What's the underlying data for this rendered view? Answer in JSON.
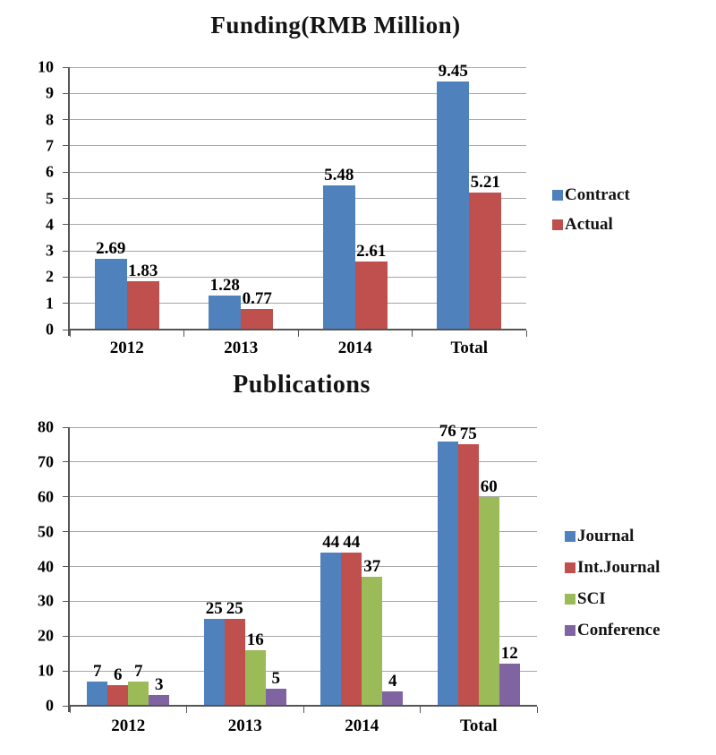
{
  "page": {
    "background": "#ffffff"
  },
  "chart_data": [
    {
      "type": "bar",
      "title": "Funding(RMB Million)",
      "categories": [
        "2012",
        "2013",
        "2014",
        "Total"
      ],
      "series": [
        {
          "name": "Contract",
          "color": "#4F81BD",
          "values": [
            2.69,
            1.28,
            5.48,
            9.45
          ],
          "labels": [
            "2.69",
            "1.28",
            "5.48",
            "9.45"
          ]
        },
        {
          "name": "Actual",
          "color": "#C0504D",
          "values": [
            1.83,
            0.77,
            2.61,
            5.21
          ],
          "labels": [
            "1.83",
            "0.77",
            "2.61",
            "5.21"
          ]
        }
      ],
      "ylim": [
        0,
        10
      ],
      "yticks": [
        0,
        1,
        2,
        3,
        4,
        5,
        6,
        7,
        8,
        9,
        10
      ],
      "xlabel": "",
      "ylabel": "",
      "grid": true,
      "legend_position": "right"
    },
    {
      "type": "bar",
      "title": "Publications",
      "categories": [
        "2012",
        "2013",
        "2014",
        "Total"
      ],
      "series": [
        {
          "name": "Journal",
          "color": "#4F81BD",
          "values": [
            7,
            25,
            44,
            76
          ],
          "labels": [
            "7",
            "25",
            "44",
            "76"
          ]
        },
        {
          "name": "Int.Journal",
          "color": "#C0504D",
          "values": [
            6,
            25,
            44,
            75
          ],
          "labels": [
            "6",
            "25",
            "44",
            "75"
          ]
        },
        {
          "name": "SCI",
          "color": "#9BBB59",
          "values": [
            7,
            16,
            37,
            60
          ],
          "labels": [
            "7",
            "16",
            "37",
            "60"
          ]
        },
        {
          "name": "Conference",
          "color": "#8064A2",
          "values": [
            3,
            5,
            4,
            12
          ],
          "labels": [
            "3",
            "5",
            "4",
            "12"
          ]
        }
      ],
      "ylim": [
        0,
        80
      ],
      "yticks": [
        0,
        10,
        20,
        30,
        40,
        50,
        60,
        70,
        80
      ],
      "xlabel": "",
      "ylabel": "",
      "grid": true,
      "legend_position": "right"
    }
  ]
}
